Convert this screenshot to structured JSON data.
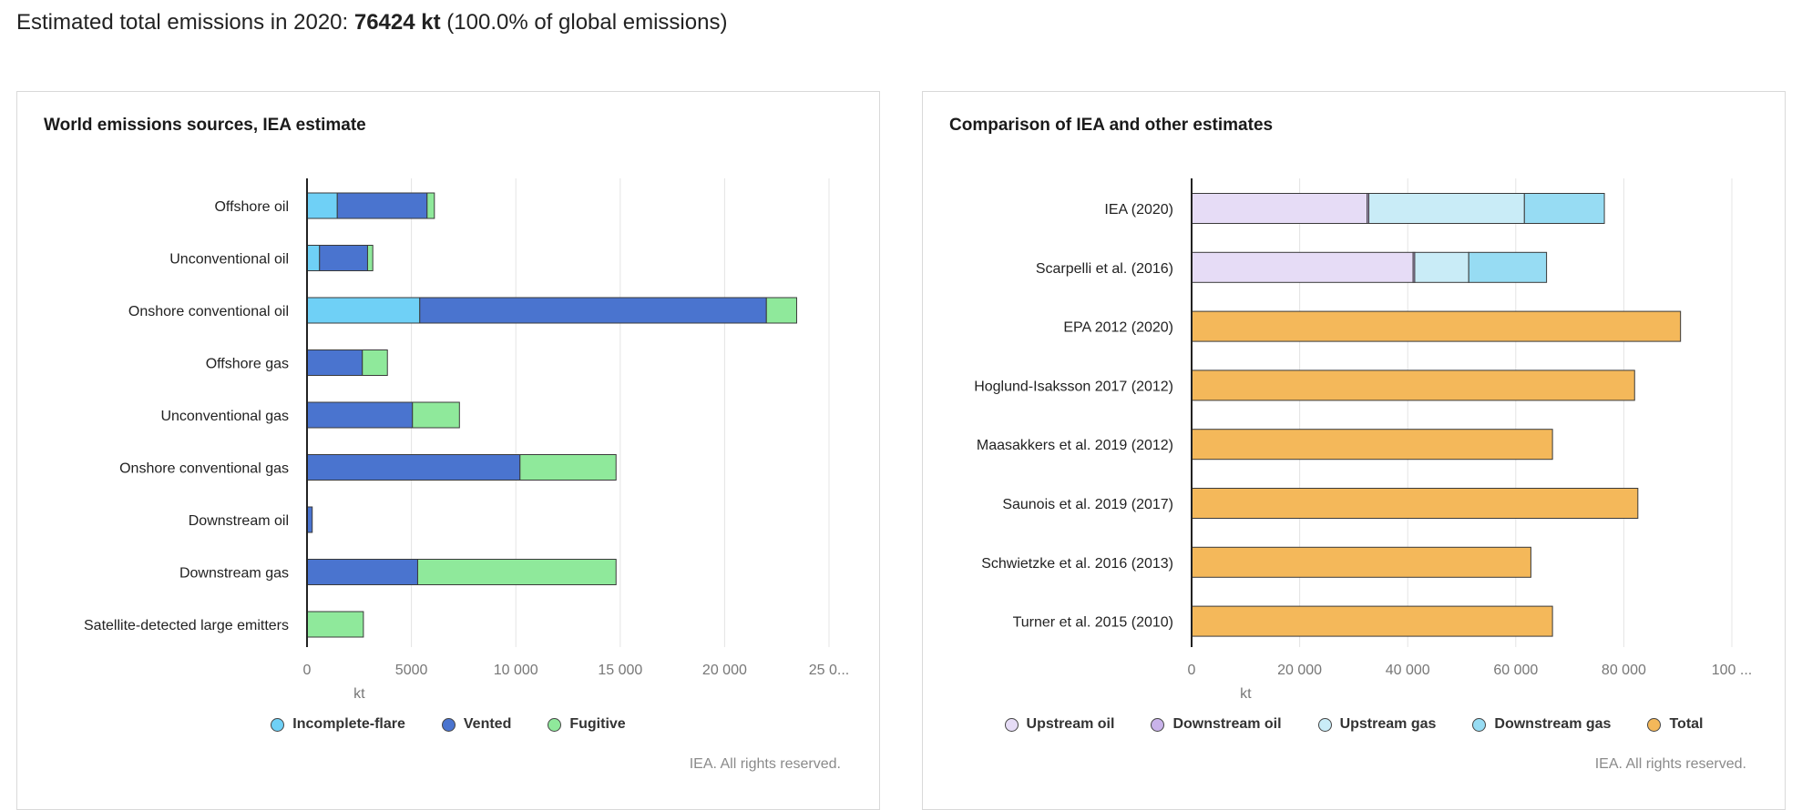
{
  "headline": {
    "prefix": "Estimated total emissions in 2020: ",
    "value": "76424 kt",
    "suffix": " (100.0% of global emissions)"
  },
  "credit": "IEA. All rights reserved.",
  "chart_data": [
    {
      "type": "bar",
      "orientation": "horizontal",
      "stacked": true,
      "title": "World emissions sources, IEA estimate",
      "xlabel": "kt",
      "xlim": [
        0,
        25000
      ],
      "xticks": [
        "0",
        "5000",
        "10 000",
        "15 000",
        "20 000",
        "25 0..."
      ],
      "grid": true,
      "legend_position": "bottom",
      "categories": [
        "Offshore oil",
        "Unconventional oil",
        "Onshore conventional oil",
        "Offshore gas",
        "Unconventional gas",
        "Onshore conventional gas",
        "Downstream oil",
        "Downstream gas",
        "Satellite-detected large emitters"
      ],
      "series": [
        {
          "name": "Incomplete-flare",
          "color": "#6fd0f6",
          "values": [
            1450,
            600,
            5400,
            0,
            0,
            0,
            0,
            0,
            0
          ]
        },
        {
          "name": "Vented",
          "color": "#4a74cf",
          "values": [
            4300,
            2300,
            16600,
            2650,
            5050,
            10200,
            250,
            5300,
            0
          ]
        },
        {
          "name": "Fugitive",
          "color": "#8fe99b",
          "values": [
            350,
            250,
            1450,
            1200,
            2250,
            4600,
            0,
            9500,
            2700
          ]
        }
      ]
    },
    {
      "type": "bar",
      "orientation": "horizontal",
      "stacked": true,
      "title": "Comparison of IEA and other estimates",
      "xlabel": "kt",
      "xlim": [
        0,
        100000
      ],
      "xticks": [
        "0",
        "20 000",
        "40 000",
        "60 000",
        "80 000",
        "100 ..."
      ],
      "grid": true,
      "legend_position": "bottom",
      "categories": [
        "IEA (2020)",
        "Scarpelli et al. (2016)",
        "EPA 2012 (2020)",
        "Hoglund-Isaksson 2017 (2012)",
        "Maasakkers et al. 2019 (2012)",
        "Saunois et al. 2019 (2017)",
        "Schwietzke et al. 2016 (2013)",
        "Turner et al. 2015 (2010)"
      ],
      "series": [
        {
          "name": "Upstream oil",
          "color": "#e6dcf6",
          "values": [
            32500,
            41000,
            0,
            0,
            0,
            0,
            0,
            0
          ]
        },
        {
          "name": "Downstream oil",
          "color": "#c9b3ea",
          "values": [
            300,
            300,
            0,
            0,
            0,
            0,
            0,
            0
          ]
        },
        {
          "name": "Upstream gas",
          "color": "#c9ecf7",
          "values": [
            28800,
            10000,
            0,
            0,
            0,
            0,
            0,
            0
          ]
        },
        {
          "name": "Downstream gas",
          "color": "#97dcf3",
          "values": [
            14800,
            14400,
            0,
            0,
            0,
            0,
            0,
            0
          ]
        },
        {
          "name": "Total",
          "color": "#f4b85a",
          "values": [
            0,
            0,
            90500,
            82000,
            66800,
            82600,
            62800,
            66800
          ]
        }
      ]
    }
  ]
}
